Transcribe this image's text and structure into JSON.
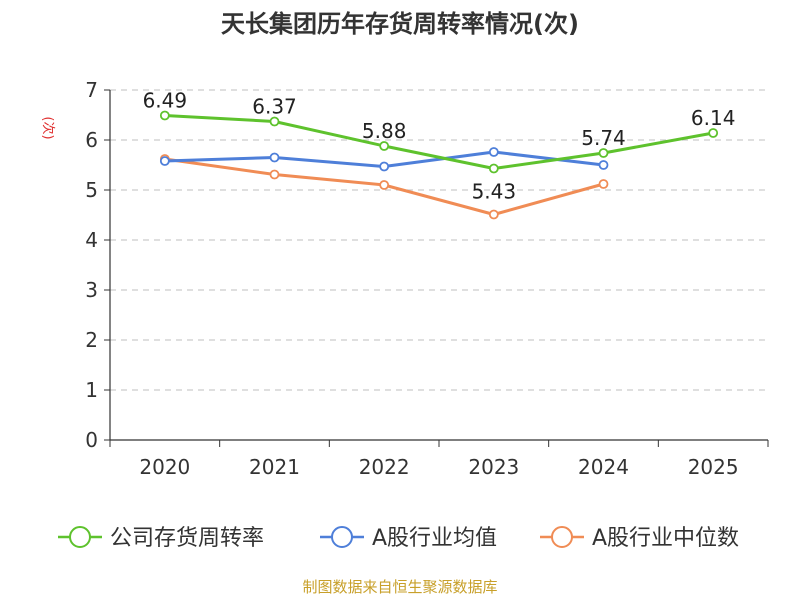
{
  "chart_data": {
    "type": "line",
    "title": "天长集团历年存货周转率情况(次)",
    "ylabel": "(次)",
    "xlabel": "",
    "categories": [
      "2020",
      "2021",
      "2022",
      "2023",
      "2024",
      "2025"
    ],
    "ylim": [
      0,
      7
    ],
    "yticks": [
      "0",
      "1",
      "2",
      "3",
      "4",
      "5",
      "6",
      "7"
    ],
    "grid": true,
    "legend_position": "bottom",
    "series": [
      {
        "name": "公司存货周转率",
        "color": "#5ec22d",
        "values": [
          6.49,
          6.37,
          5.88,
          5.43,
          5.74,
          6.14
        ],
        "labels": [
          "6.49",
          "6.37",
          "5.88",
          "5.43",
          "5.74",
          "6.14"
        ]
      },
      {
        "name": "A股行业均值",
        "color": "#4e7fd9",
        "values": [
          5.58,
          5.65,
          5.47,
          5.76,
          5.5,
          null
        ]
      },
      {
        "name": "A股行业中位数",
        "color": "#f08c55",
        "values": [
          5.62,
          5.31,
          5.1,
          4.51,
          5.12,
          null
        ]
      }
    ],
    "source": "制图数据来自恒生聚源数据库"
  }
}
